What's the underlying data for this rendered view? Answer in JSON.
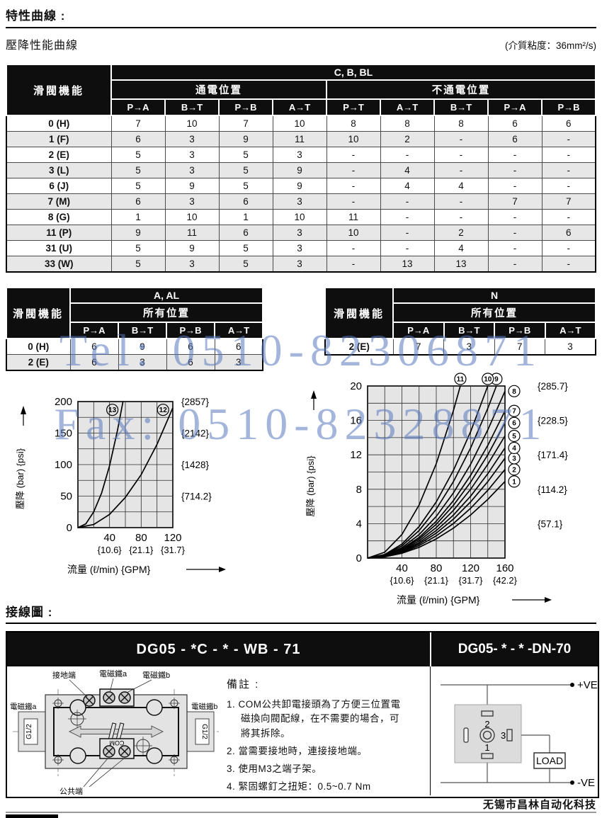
{
  "page": {
    "section1_title": "特性曲線 :",
    "subtitle": "壓降性能曲線",
    "viscosity_note": "(介質粘度：36mm²/s)",
    "section2_title": "接線圖 :",
    "company": "无锡市昌林自动化科技"
  },
  "watermark": {
    "tel": "Tel: 0510-82306871",
    "fax": "Fax: 0510-82328871",
    "color": "#5878be"
  },
  "main_table": {
    "col0_header": "滑閥機能",
    "group_header": "C, B, BL",
    "subs": [
      {
        "label": "通電位置",
        "span": 4
      },
      {
        "label": "不通電位置",
        "span": 5
      }
    ],
    "col_headers": [
      "P→A",
      "B→T",
      "P→B",
      "A→T",
      "P→T",
      "A→T",
      "B→T",
      "P→A",
      "P→B"
    ],
    "rows": [
      {
        "label": "0  (H)",
        "values": [
          "7",
          "10",
          "7",
          "10",
          "8",
          "8",
          "8",
          "6",
          "6"
        ]
      },
      {
        "label": "1  (F)",
        "values": [
          "6",
          "3",
          "9",
          "11",
          "10",
          "2",
          "-",
          "6",
          "-"
        ]
      },
      {
        "label": "2  (E)",
        "values": [
          "5",
          "3",
          "5",
          "3",
          "-",
          "-",
          "-",
          "-",
          "-"
        ]
      },
      {
        "label": "3  (L)",
        "values": [
          "5",
          "3",
          "5",
          "9",
          "-",
          "4",
          "-",
          "-",
          "-"
        ]
      },
      {
        "label": "6  (J)",
        "values": [
          "5",
          "9",
          "5",
          "9",
          "-",
          "4",
          "4",
          "-",
          "-"
        ]
      },
      {
        "label": "7  (M)",
        "values": [
          "6",
          "3",
          "6",
          "3",
          "-",
          "-",
          "-",
          "7",
          "7"
        ]
      },
      {
        "label": "8  (G)",
        "values": [
          "1",
          "10",
          "1",
          "10",
          "11",
          "-",
          "-",
          "-",
          "-"
        ]
      },
      {
        "label": "11  (P)",
        "values": [
          "9",
          "11",
          "6",
          "3",
          "10",
          "-",
          "2",
          "-",
          "6"
        ]
      },
      {
        "label": "31  (U)",
        "values": [
          "5",
          "9",
          "5",
          "3",
          "-",
          "-",
          "4",
          "-",
          "-"
        ]
      },
      {
        "label": "33  (W)",
        "values": [
          "5",
          "3",
          "5",
          "3",
          "-",
          "13",
          "13",
          "-",
          "-"
        ]
      }
    ]
  },
  "table_aal": {
    "col0_header": "滑閥機能",
    "group_header": "A, AL",
    "subs": [
      {
        "label": "所有位置",
        "span": 4
      }
    ],
    "col_headers": [
      "P→A",
      "B→T",
      "P→B",
      "A→T"
    ],
    "rows": [
      {
        "label": "0  (H)",
        "values": [
          "6",
          "9",
          "6",
          "6"
        ]
      },
      {
        "label": "2  (E)",
        "values": [
          "6",
          "3",
          "6",
          "3"
        ]
      }
    ]
  },
  "table_n": {
    "col0_header": "滑閥機能",
    "group_header": "N",
    "subs": [
      {
        "label": "所有位置",
        "span": 4
      }
    ],
    "col_headers": [
      "P→A",
      "B→T",
      "P→B",
      "A→T"
    ],
    "rows": [
      {
        "label": "2  (E)",
        "values": [
          "7",
          "3",
          "7",
          "3"
        ]
      }
    ]
  },
  "chart_data": [
    {
      "name": "WB pressure drop curves",
      "type": "line",
      "xlabel": "流量 (ℓ/min) {GPM}",
      "ylabel": "壓降 (bar) {psi}",
      "xlim": [
        0,
        120
      ],
      "ylim": [
        0,
        200
      ],
      "x_grid_step": 20,
      "y_grid_step": 25,
      "grid": true,
      "x_ticks": [
        {
          "flow": "40",
          "gpm": "{10.6}"
        },
        {
          "flow": "80",
          "gpm": "{21.1}"
        },
        {
          "flow": "120",
          "gpm": "{31.7}"
        }
      ],
      "y_ticks": [
        {
          "bar": "0"
        },
        {
          "bar": "50",
          "psi": "{714.2}"
        },
        {
          "bar": "100",
          "psi": "{1428}"
        },
        {
          "bar": "150",
          "psi": "{2142}"
        },
        {
          "bar": "200",
          "psi": "{2857}"
        }
      ],
      "series_label_mode": "inside",
      "series": [
        {
          "name": "13",
          "x": [
            0,
            10,
            20,
            30,
            40,
            50,
            57
          ],
          "y": [
            0,
            6,
            25,
            55,
            98,
            154,
            200
          ]
        },
        {
          "name": "12",
          "x": [
            0,
            20,
            40,
            60,
            80,
            100,
            120
          ],
          "y": [
            0,
            5,
            21,
            48,
            84,
            132,
            190
          ]
        }
      ]
    },
    {
      "name": "DN pressure drop curves",
      "type": "line",
      "xlabel": "流量 (ℓ/min) {GPM}",
      "ylabel": "壓降 (bar) {psi}",
      "xlim": [
        0,
        160
      ],
      "ylim": [
        0,
        20
      ],
      "x_grid_step": 20,
      "y_grid_step": 2,
      "grid": true,
      "x_ticks": [
        {
          "flow": "40",
          "gpm": "{10.6}"
        },
        {
          "flow": "80",
          "gpm": "{21.1}"
        },
        {
          "flow": "120",
          "gpm": "{31.7}"
        },
        {
          "flow": "160",
          "gpm": "{42.2}"
        }
      ],
      "y_ticks": [
        {
          "bar": "0"
        },
        {
          "bar": "4",
          "psi": "{57.1}"
        },
        {
          "bar": "8",
          "psi": "{114.2}"
        },
        {
          "bar": "12",
          "psi": "{171.4}"
        },
        {
          "bar": "16",
          "psi": "{228.5}"
        },
        {
          "bar": "20",
          "psi": "{285.7}"
        }
      ],
      "series_label_mode": "edge",
      "series": [
        {
          "name": "1",
          "x": [
            0,
            20,
            40,
            60,
            80,
            100,
            120,
            140,
            160
          ],
          "y": [
            0,
            0.14,
            0.56,
            1.25,
            2.23,
            3.48,
            5.01,
            6.82,
            8.9
          ]
        },
        {
          "name": "2",
          "x": [
            0,
            20,
            40,
            60,
            80,
            100,
            120,
            140,
            160
          ],
          "y": [
            0,
            0.16,
            0.64,
            1.45,
            2.58,
            4.02,
            5.79,
            7.88,
            10.3
          ]
        },
        {
          "name": "3",
          "x": [
            0,
            20,
            40,
            60,
            80,
            100,
            120,
            140,
            160
          ],
          "y": [
            0,
            0.18,
            0.73,
            1.63,
            2.9,
            4.53,
            6.53,
            8.88,
            11.6
          ]
        },
        {
          "name": "4",
          "x": [
            0,
            20,
            40,
            60,
            80,
            100,
            120,
            140,
            160
          ],
          "y": [
            0,
            0.2,
            0.8,
            1.8,
            3.2,
            5.0,
            7.2,
            9.8,
            12.8
          ]
        },
        {
          "name": "5",
          "x": [
            0,
            20,
            40,
            60,
            80,
            100,
            120,
            140,
            160
          ],
          "y": [
            0,
            0.22,
            0.89,
            2.0,
            3.55,
            5.55,
            7.99,
            10.9,
            14.2
          ]
        },
        {
          "name": "6",
          "x": [
            0,
            20,
            40,
            60,
            80,
            100,
            120,
            140,
            160
          ],
          "y": [
            0,
            0.25,
            0.98,
            2.21,
            3.93,
            6.13,
            8.83,
            12.0,
            15.7
          ]
        },
        {
          "name": "7",
          "x": [
            0,
            20,
            40,
            60,
            80,
            100,
            120,
            140,
            160
          ],
          "y": [
            0,
            0.27,
            1.07,
            2.4,
            4.28,
            6.68,
            9.62,
            13.1,
            17.1
          ]
        },
        {
          "name": "8",
          "x": [
            0,
            20,
            40,
            60,
            80,
            100,
            120,
            140,
            160
          ],
          "y": [
            0,
            0.3,
            1.21,
            2.73,
            4.85,
            7.58,
            10.9,
            14.9,
            19.4
          ]
        },
        {
          "name": "9",
          "x": [
            0,
            20,
            40,
            60,
            80,
            100,
            120,
            140,
            150
          ],
          "y": [
            0,
            0.36,
            1.42,
            3.2,
            5.69,
            8.89,
            12.8,
            17.4,
            20
          ]
        },
        {
          "name": "10",
          "x": [
            0,
            20,
            40,
            60,
            80,
            100,
            120,
            140
          ],
          "y": [
            0,
            0.41,
            1.63,
            3.67,
            6.53,
            10.2,
            14.69,
            20
          ]
        },
        {
          "name": "11",
          "x": [
            0,
            20,
            40,
            60,
            80,
            100,
            108
          ],
          "y": [
            0,
            0.69,
            2.74,
            6.17,
            10.97,
            17.15,
            20
          ]
        }
      ]
    }
  ],
  "wiring": {
    "header_left": "DG05 - *C - * - WB - 71",
    "header_right": "DG05- * - * -DN-70",
    "valve_labels": {
      "ground": "接地端",
      "sol_a": "電磁鐵a",
      "sol_b": "電磁鐵b",
      "port": "G1/2",
      "common": "公共端",
      "com": "COM"
    },
    "notes_title": "備註 :",
    "notes": [
      "1. COM公共卸電接頭為了方便三位置電磁換向閥配線，在不需要的場合，可將其拆除。",
      "2. 當需要接地時，連接接地端。",
      "3. 使用M3之端子架。",
      "4. 緊固螺釘之扭矩：0.5~0.7 Nm"
    ],
    "dn_labels": {
      "pos": "+VE",
      "neg": "-VE",
      "load": "LOAD",
      "pin1": "1",
      "pin2": "2",
      "pin3": "3"
    }
  }
}
